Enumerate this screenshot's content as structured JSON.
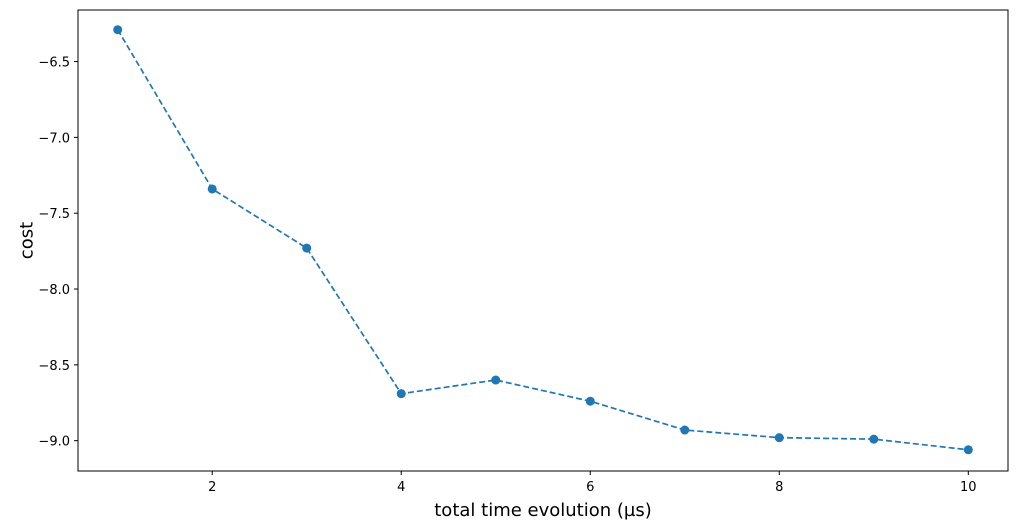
{
  "chart_data": {
    "type": "line",
    "title": "",
    "xlabel": "total time evolution (µs)",
    "ylabel": "cost",
    "xlim": [
      0.58,
      10.42
    ],
    "ylim": [
      -9.2,
      -6.16
    ],
    "xticks": [
      2,
      4,
      6,
      8,
      10
    ],
    "yticks": [
      -6.5,
      -7.0,
      -7.5,
      -8.0,
      -8.5,
      -9.0
    ],
    "xtick_labels": [
      "2",
      "4",
      "6",
      "8",
      "10"
    ],
    "ytick_labels": [
      "−6.5",
      "−7.0",
      "−7.5",
      "−8.0",
      "−8.5",
      "−9.0"
    ],
    "grid": false,
    "legend": false,
    "series": [
      {
        "line_style": "dashed",
        "marker": "circle",
        "color": "#1f77b4",
        "x": [
          1,
          2,
          3,
          4,
          5,
          6,
          7,
          8,
          9,
          10
        ],
        "y": [
          -6.29,
          -7.34,
          -7.73,
          -8.69,
          -8.6,
          -8.74,
          -8.93,
          -8.98,
          -8.99,
          -9.06
        ]
      }
    ]
  }
}
